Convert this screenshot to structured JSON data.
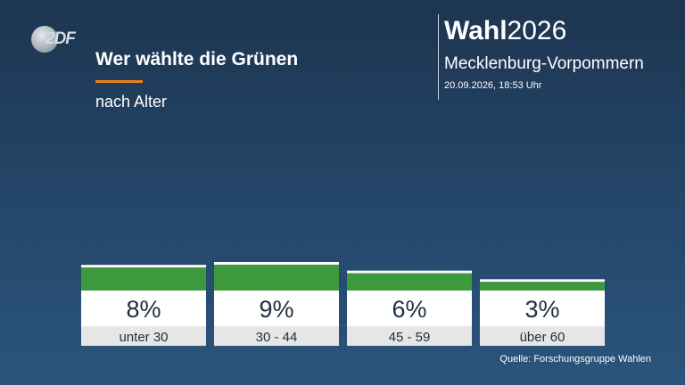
{
  "broadcaster": {
    "logo_text": "2DF"
  },
  "header": {
    "title": "Wer wählte die Grünen",
    "subtitle": "nach Alter"
  },
  "brand": {
    "prefix": "Wahl",
    "year": "2026",
    "region": "Mecklenburg-Vorpommern",
    "timestamp": "20.09.2026, 18:53 Uhr"
  },
  "source": "Quelle: Forschungsgruppe Wahlen",
  "colors": {
    "bar": "#3d9a3c",
    "value_box": "#ffffff",
    "label_bg": "#e6e6e6",
    "accent": "#f07d19"
  },
  "chart_data": {
    "type": "bar",
    "categories": [
      "unter 30",
      "30 - 44",
      "45 - 59",
      "über 60"
    ],
    "values": [
      8,
      9,
      6,
      3
    ],
    "value_labels": [
      "8%",
      "9%",
      "6%",
      "3%"
    ],
    "unit": "%",
    "ylim": [
      0,
      9
    ],
    "grid": false,
    "legend": "none"
  }
}
